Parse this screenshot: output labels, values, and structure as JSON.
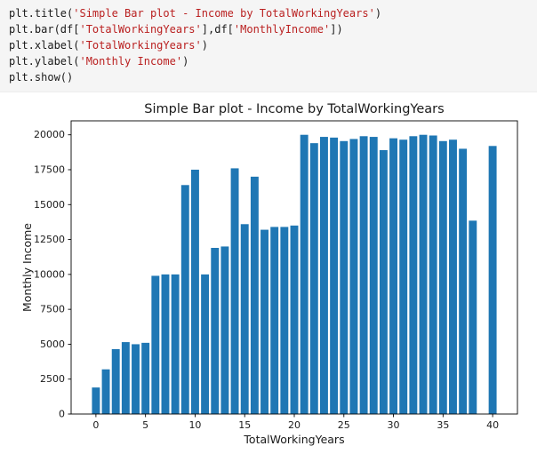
{
  "code_cell": {
    "language": "python",
    "lines": [
      {
        "tokens": [
          {
            "t": "plt.title(",
            "c": "default"
          },
          {
            "t": "'Simple Bar plot - Income by TotalWorkingYears'",
            "c": "string"
          },
          {
            "t": ")",
            "c": "default"
          }
        ]
      },
      {
        "tokens": [
          {
            "t": "plt.bar(df[",
            "c": "default"
          },
          {
            "t": "'TotalWorkingYears'",
            "c": "string"
          },
          {
            "t": "],df[",
            "c": "default"
          },
          {
            "t": "'MonthlyIncome'",
            "c": "string"
          },
          {
            "t": "])",
            "c": "default"
          }
        ]
      },
      {
        "tokens": [
          {
            "t": "plt.xlabel(",
            "c": "default"
          },
          {
            "t": "'TotalWorkingYears'",
            "c": "string"
          },
          {
            "t": ")",
            "c": "default"
          }
        ]
      },
      {
        "tokens": [
          {
            "t": "plt.ylabel(",
            "c": "default"
          },
          {
            "t": "'Monthly Income'",
            "c": "string"
          },
          {
            "t": ")",
            "c": "default"
          }
        ]
      },
      {
        "tokens": [
          {
            "t": "plt.show()",
            "c": "default"
          }
        ]
      }
    ]
  },
  "chart_data": {
    "type": "bar",
    "title": "Simple Bar plot - Income by TotalWorkingYears",
    "xlabel": "TotalWorkingYears",
    "ylabel": "Monthly Income",
    "bar_color": "#1f77b4",
    "bar_width": 0.8,
    "xlim": [
      -2.5,
      42.5
    ],
    "ylim": [
      0,
      21000
    ],
    "xticks": [
      0,
      5,
      10,
      15,
      20,
      25,
      30,
      35,
      40
    ],
    "yticks": [
      0,
      2500,
      5000,
      7500,
      10000,
      12500,
      15000,
      17500,
      20000
    ],
    "grid": false,
    "legend": false,
    "x": [
      0,
      1,
      2,
      3,
      4,
      5,
      6,
      7,
      8,
      9,
      10,
      11,
      12,
      13,
      14,
      15,
      16,
      17,
      18,
      19,
      20,
      21,
      22,
      23,
      24,
      25,
      26,
      27,
      28,
      29,
      30,
      31,
      32,
      33,
      34,
      35,
      36,
      37,
      38,
      40
    ],
    "y": [
      1900,
      3200,
      4650,
      5150,
      5000,
      5100,
      9900,
      10000,
      10000,
      16400,
      17500,
      10000,
      11900,
      12000,
      17600,
      13600,
      17000,
      13200,
      13400,
      13400,
      13500,
      20000,
      19400,
      19850,
      19800,
      19550,
      19700,
      19900,
      19850,
      18900,
      19750,
      19650,
      19900,
      20000,
      19950,
      19550,
      19650,
      19000,
      13850,
      19200
    ]
  }
}
